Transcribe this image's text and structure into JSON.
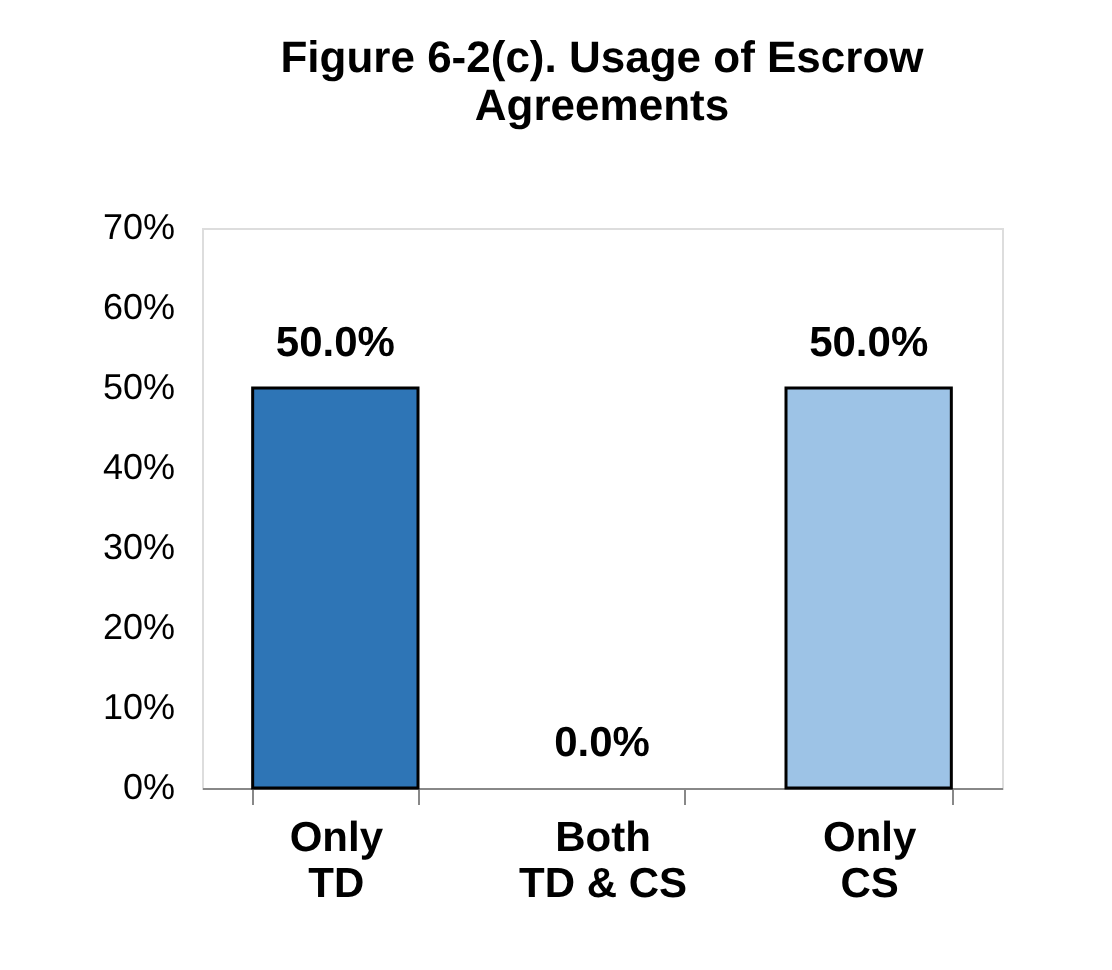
{
  "chart_data": {
    "type": "bar",
    "title": "Figure 6-2(c). Usage of Escrow\nAgreements",
    "categories": [
      "Only\nTD",
      "Both\nTD & CS",
      "Only\nCS"
    ],
    "values": [
      50,
      0,
      50
    ],
    "colors": [
      "#2e75b6",
      "#5b9bd5",
      "#9dc3e6"
    ],
    "value_labels": [
      "50.0%",
      "0.0%",
      "50.0%"
    ],
    "ylim": [
      0,
      70
    ],
    "yticks": [
      {
        "value": 0,
        "label": "0%"
      },
      {
        "value": 10,
        "label": "10%"
      },
      {
        "value": 20,
        "label": "20%"
      },
      {
        "value": 30,
        "label": "30%"
      },
      {
        "value": 40,
        "label": "40%"
      },
      {
        "value": 50,
        "label": "50%"
      },
      {
        "value": 60,
        "label": "60%"
      },
      {
        "value": 70,
        "label": "70%"
      }
    ],
    "grid": false,
    "legend": false
  }
}
